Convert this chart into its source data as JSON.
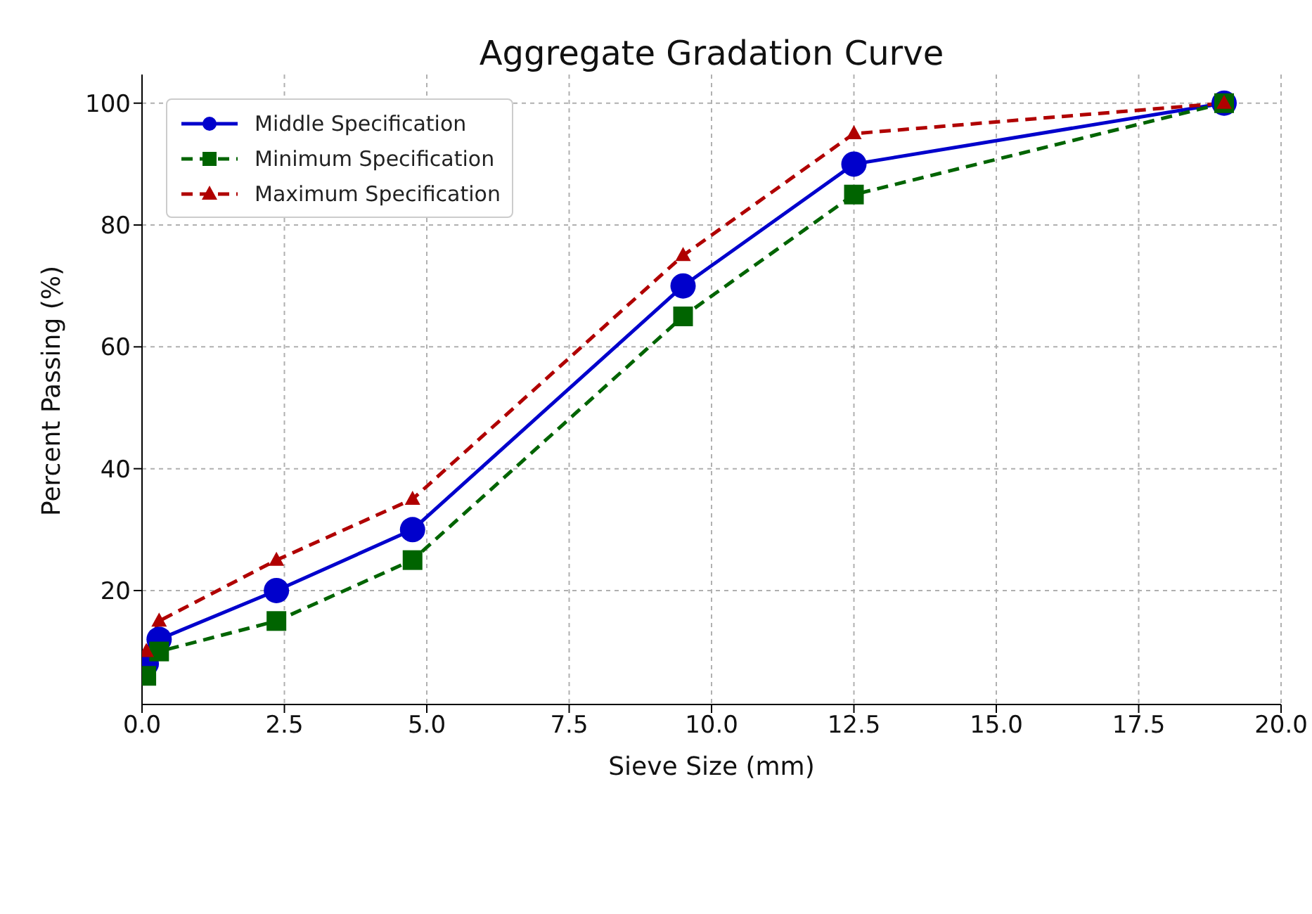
{
  "chart_data": {
    "type": "line",
    "title": "Aggregate Gradation Curve",
    "xlabel": "Sieve Size (mm)",
    "ylabel": "Percent Passing (%)",
    "x": [
      0.075,
      0.3,
      2.36,
      4.75,
      9.5,
      12.5,
      19
    ],
    "series": [
      {
        "name": "Middle Specification",
        "color": "#0000cc",
        "values": [
          8,
          12,
          20,
          30,
          70,
          90,
          100
        ],
        "marker": "circle",
        "line_style": "solid"
      },
      {
        "name": "Minimum Specification",
        "color": "#006400",
        "values": [
          6,
          10,
          15,
          25,
          65,
          85,
          100
        ],
        "marker": "square",
        "line_style": "dashed"
      },
      {
        "name": "Maximum Specification",
        "color": "#b00000",
        "values": [
          10,
          15,
          25,
          35,
          75,
          95,
          100
        ],
        "marker": "triangle",
        "line_style": "dashed"
      }
    ],
    "xlim": [
      0,
      20
    ],
    "xticks": [
      {
        "value": 0,
        "label": "0.0"
      },
      {
        "value": 2.5,
        "label": "2.5"
      },
      {
        "value": 5,
        "label": "5.0"
      },
      {
        "value": 7.5,
        "label": "7.5"
      },
      {
        "value": 10,
        "label": "10.0"
      },
      {
        "value": 12.5,
        "label": "12.5"
      },
      {
        "value": 15,
        "label": "15.0"
      },
      {
        "value": 17.5,
        "label": "17.5"
      },
      {
        "value": 20,
        "label": "20.0"
      }
    ],
    "ylim": [
      1.3,
      104.7
    ],
    "yticks": [
      20,
      40,
      60,
      80,
      100
    ],
    "grid": true,
    "legend": "top left"
  }
}
